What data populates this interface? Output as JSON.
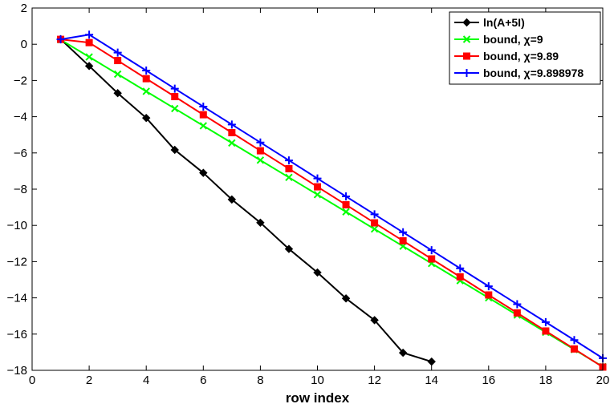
{
  "chart_data": {
    "type": "line",
    "title": "",
    "xlabel": "row index",
    "ylabel": "",
    "xlim": [
      0,
      20
    ],
    "ylim": [
      -18,
      2
    ],
    "xticks": [
      0,
      2,
      4,
      6,
      8,
      10,
      12,
      14,
      16,
      18,
      20
    ],
    "yticks": [
      2,
      0,
      -2,
      -4,
      -6,
      -8,
      -10,
      -12,
      -14,
      -16,
      -18
    ],
    "grid": false,
    "legend_position": "top-right",
    "series": [
      {
        "name": "ln(A+5I)",
        "color": "#000000",
        "marker": "diamond",
        "x": [
          1,
          2,
          3,
          4,
          5,
          6,
          7,
          8,
          9,
          10,
          11,
          12,
          13,
          14
        ],
        "y": [
          0.28,
          -1.2,
          -2.7,
          -4.07,
          -5.83,
          -7.1,
          -8.57,
          -9.85,
          -11.3,
          -12.6,
          -14.03,
          -15.23,
          -17.03,
          -17.52
        ]
      },
      {
        "name": "bound, χ=9",
        "color": "#00ff00",
        "marker": "x",
        "x": [
          1,
          2,
          3,
          4,
          5,
          6,
          7,
          8,
          9,
          10,
          11,
          12,
          13,
          14,
          15,
          16,
          17,
          18,
          19,
          20
        ],
        "y": [
          0.25,
          -0.7,
          -1.65,
          -2.6,
          -3.55,
          -4.5,
          -5.45,
          -6.4,
          -7.35,
          -8.3,
          -9.25,
          -10.2,
          -11.15,
          -12.1,
          -13.05,
          -14.0,
          -14.95,
          -15.9,
          -16.85,
          -17.8
        ]
      },
      {
        "name": "bound, χ=9.89",
        "color": "#ff0000",
        "marker": "square",
        "x": [
          1,
          2,
          3,
          4,
          5,
          6,
          7,
          8,
          9,
          10,
          11,
          12,
          13,
          14,
          15,
          16,
          17,
          18,
          19,
          20
        ],
        "y": [
          0.27,
          0.09,
          -0.9,
          -1.9,
          -2.89,
          -3.89,
          -4.88,
          -5.88,
          -6.87,
          -7.87,
          -8.86,
          -9.86,
          -10.85,
          -11.85,
          -12.84,
          -13.84,
          -14.83,
          -15.83,
          -16.82,
          -17.82
        ]
      },
      {
        "name": "bound, χ=9.898978",
        "color": "#0000ff",
        "marker": "plus",
        "x": [
          1,
          2,
          3,
          4,
          5,
          6,
          7,
          8,
          9,
          10,
          11,
          12,
          13,
          14,
          15,
          16,
          17,
          18,
          19,
          20
        ],
        "y": [
          0.27,
          0.53,
          -0.46,
          -1.45,
          -2.45,
          -3.44,
          -4.43,
          -5.42,
          -6.41,
          -7.41,
          -8.4,
          -9.39,
          -10.38,
          -11.37,
          -12.37,
          -13.36,
          -14.35,
          -15.34,
          -16.33,
          -17.33
        ]
      }
    ]
  }
}
